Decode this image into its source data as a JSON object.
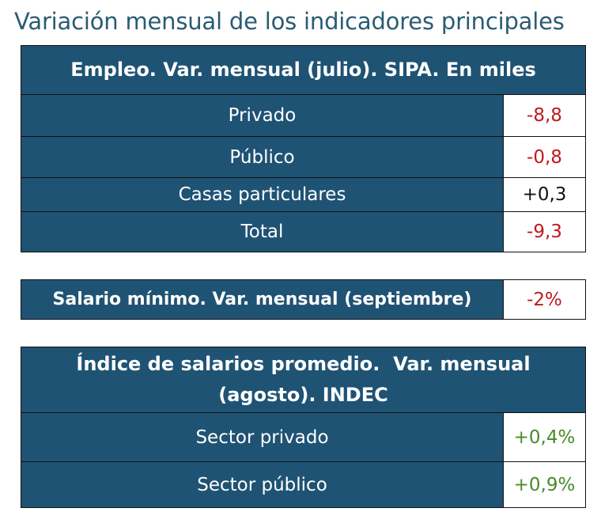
{
  "title": "Variación mensual de los indicadores principales",
  "empleo": {
    "header": "Empleo. Var. mensual (julio). SIPA. En miles",
    "rows": [
      {
        "label": "Privado",
        "value": "-8,8"
      },
      {
        "label": "Público",
        "value": "-0,8"
      },
      {
        "label": "Casas particulares",
        "value": "+0,3"
      },
      {
        "label": "Total",
        "value": "-9,3"
      }
    ]
  },
  "salario_minimo": {
    "label": "Salario mínimo. Var. mensual (septiembre)",
    "value": "-2%"
  },
  "indice_salarios": {
    "header_line1": "Índice de salarios promedio.  Var. mensual",
    "header_line2": "(agosto). INDEC",
    "rows": [
      {
        "label": "Sector privado",
        "value": "+0,4%"
      },
      {
        "label": "Sector público",
        "value": "+0,9%"
      }
    ]
  },
  "colors": {
    "header_bg": "#1f5374",
    "title": "#2a5b73",
    "negative": "#c0191c",
    "positive": "#4a8a2a"
  }
}
